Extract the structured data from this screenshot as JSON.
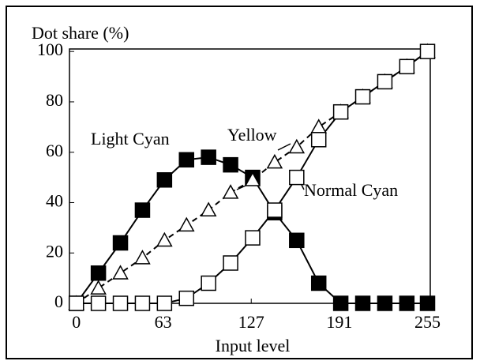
{
  "chart_data": {
    "type": "line",
    "ylabel": "Dot share (%)",
    "xlabel": "Input level",
    "x": [
      0,
      16,
      32,
      48,
      64,
      80,
      96,
      112,
      128,
      144,
      160,
      176,
      192,
      208,
      224,
      240,
      255
    ],
    "series": [
      {
        "name": "Light Cyan",
        "color": "#000000",
        "marker": "filled-square",
        "dash": false,
        "values": [
          0,
          12,
          24,
          37,
          49,
          57,
          58,
          55,
          50,
          36,
          25,
          8,
          0,
          0,
          0,
          0,
          0
        ]
      },
      {
        "name": "Yellow",
        "color": "#000000",
        "marker": "triangle",
        "dash": true,
        "values": [
          0,
          6,
          12,
          18,
          25,
          31,
          37,
          44,
          49,
          56,
          62,
          70,
          76,
          82,
          88,
          94,
          100
        ]
      },
      {
        "name": "Normal Cyan",
        "color": "#000000",
        "marker": "open-square",
        "dash": false,
        "values": [
          0,
          0,
          0,
          0,
          0,
          2,
          8,
          16,
          26,
          37,
          50,
          65,
          76,
          82,
          88,
          94,
          100
        ]
      }
    ],
    "xlim": [
      -5,
      257
    ],
    "ylim": [
      0,
      101
    ],
    "xticks": [
      0,
      63,
      127,
      191,
      255
    ],
    "yticks": [
      0,
      20,
      40,
      60,
      80,
      100
    ],
    "grid": false
  }
}
